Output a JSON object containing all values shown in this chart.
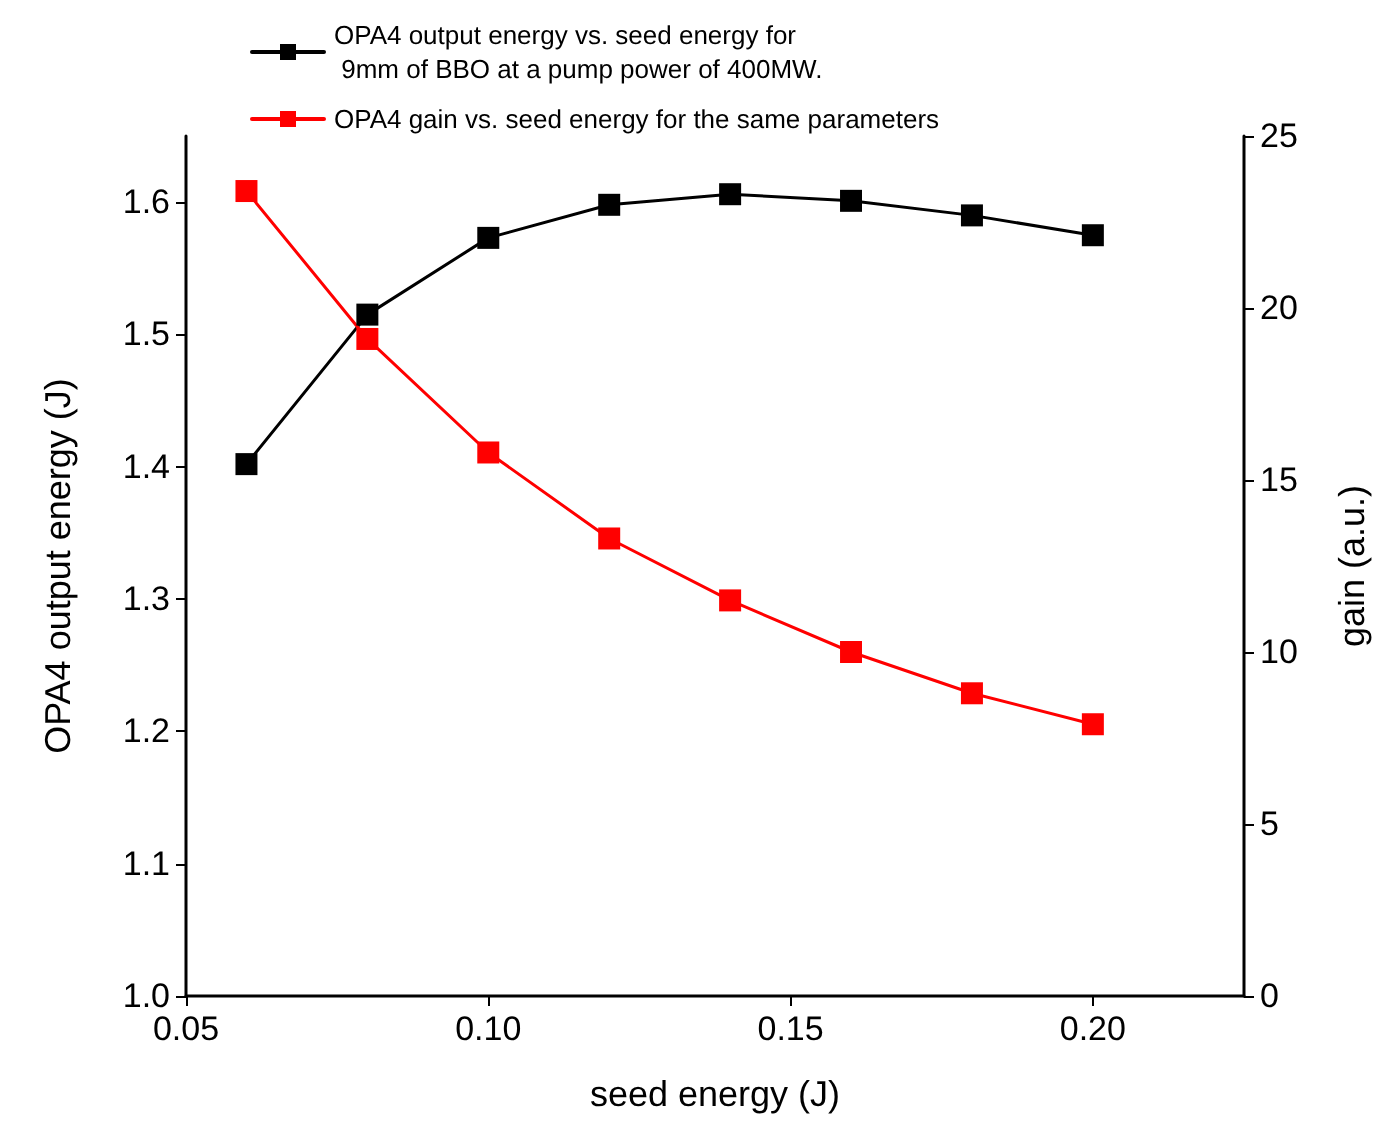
{
  "chart_data": {
    "type": "line",
    "xlabel": "seed energy (J)",
    "ylabel": "OPA4 output energy (J)",
    "y2label": "gain (a.u.)",
    "x": [
      0.06,
      0.08,
      0.1,
      0.12,
      0.14,
      0.16,
      0.18,
      0.2
    ],
    "series": [
      {
        "name": "OPA4 output energy vs. seed energy for\n 9mm of BBO at a pump power of 400MW.",
        "color": "#000000",
        "values": [
          1.402,
          1.515,
          1.573,
          1.598,
          1.606,
          1.601,
          1.59,
          1.575
        ]
      },
      {
        "name": "OPA4 gain vs. seed energy for the same parameters",
        "color": "#ff0000",
        "axis": "y2",
        "values": [
          23.4,
          19.1,
          15.8,
          13.3,
          11.5,
          10.0,
          8.8,
          7.9
        ]
      }
    ],
    "xlim": [
      0.05,
      0.225
    ],
    "xticks": [
      {
        "value": 0.05,
        "label": "0.05"
      },
      {
        "value": 0.1,
        "label": "0.10"
      },
      {
        "value": 0.15,
        "label": "0.15"
      },
      {
        "value": 0.2,
        "label": "0.20"
      }
    ],
    "ylim": [
      1.0,
      1.65
    ],
    "yticks": [
      {
        "value": 1.0,
        "label": "1.0"
      },
      1.1,
      1.2,
      1.3,
      1.4,
      1.5,
      1.6
    ],
    "y2lim": [
      0,
      25
    ],
    "y2ticks": [
      0,
      5,
      10,
      15,
      20,
      25
    ],
    "legend": "top",
    "grid": false,
    "marker": "square",
    "line_style": "solid"
  }
}
